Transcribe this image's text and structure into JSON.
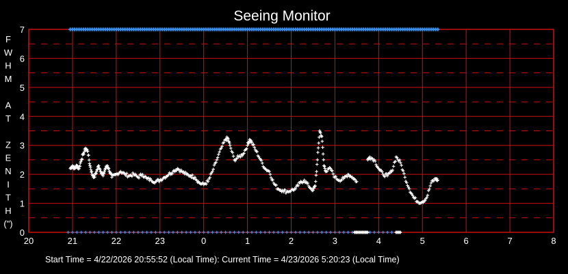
{
  "chart_data": {
    "type": "scatter",
    "title": "Seeing Monitor",
    "ylabel_letters": [
      "F",
      "W",
      "H",
      "M",
      "",
      "A",
      "T",
      "",
      "Z",
      "E",
      "N",
      "I",
      "T",
      "H",
      "(\")"
    ],
    "x_tick_labels": [
      "20",
      "21",
      "22",
      "23",
      "0",
      "1",
      "2",
      "3",
      "4",
      "5",
      "6",
      "7",
      "8"
    ],
    "y_tick_labels": [
      "0",
      "1",
      "2",
      "3",
      "4",
      "5",
      "6",
      "7"
    ],
    "x_range_hours": [
      20,
      32
    ],
    "ylim": [
      0,
      7
    ],
    "grid": true,
    "footer": "Start Time = 4/22/2026  20:55:52 (Local Time):  Current Time = 4/23/2026  5:20:23 (Local Time)",
    "colors": {
      "background": "#000000",
      "grid": "#cc1111",
      "data": "#ffffff",
      "marker": "#3a8ee8"
    },
    "top_markers_range_hours": [
      20.95,
      29.35
    ],
    "bottom_markers_range_hours": [
      20.9,
      28.5
    ],
    "bottom_highlight_ranges_hours": [
      [
        27.45,
        27.75
      ],
      [
        28.4,
        28.5
      ]
    ],
    "fwhm_series": [
      [
        20.95,
        2.2
      ],
      [
        21.0,
        2.3
      ],
      [
        21.05,
        2.2
      ],
      [
        21.1,
        2.3
      ],
      [
        21.15,
        2.2
      ],
      [
        21.2,
        2.5
      ],
      [
        21.25,
        2.7
      ],
      [
        21.3,
        2.9
      ],
      [
        21.35,
        2.8
      ],
      [
        21.4,
        2.3
      ],
      [
        21.45,
        2.0
      ],
      [
        21.5,
        1.9
      ],
      [
        21.55,
        2.1
      ],
      [
        21.6,
        2.3
      ],
      [
        21.65,
        2.1
      ],
      [
        21.7,
        1.95
      ],
      [
        21.75,
        2.2
      ],
      [
        21.8,
        2.3
      ],
      [
        21.85,
        2.1
      ],
      [
        21.9,
        1.9
      ],
      [
        22.0,
        2.0
      ],
      [
        22.1,
        2.1
      ],
      [
        22.2,
        2.0
      ],
      [
        22.3,
        1.95
      ],
      [
        22.4,
        2.0
      ],
      [
        22.5,
        1.9
      ],
      [
        22.6,
        2.0
      ],
      [
        22.7,
        1.85
      ],
      [
        22.8,
        1.8
      ],
      [
        22.9,
        1.75
      ],
      [
        23.0,
        1.8
      ],
      [
        23.1,
        1.9
      ],
      [
        23.2,
        2.0
      ],
      [
        23.3,
        2.1
      ],
      [
        23.4,
        2.2
      ],
      [
        23.5,
        2.1
      ],
      [
        23.6,
        2.0
      ],
      [
        23.7,
        1.95
      ],
      [
        23.8,
        1.9
      ],
      [
        23.9,
        1.7
      ],
      [
        24.0,
        1.65
      ],
      [
        24.1,
        1.75
      ],
      [
        24.2,
        2.1
      ],
      [
        24.3,
        2.5
      ],
      [
        24.4,
        2.9
      ],
      [
        24.5,
        3.2
      ],
      [
        24.55,
        3.25
      ],
      [
        24.6,
        3.0
      ],
      [
        24.7,
        2.5
      ],
      [
        24.8,
        2.6
      ],
      [
        24.9,
        2.7
      ],
      [
        25.0,
        3.0
      ],
      [
        25.05,
        3.2
      ],
      [
        25.1,
        3.1
      ],
      [
        25.2,
        2.8
      ],
      [
        25.3,
        2.5
      ],
      [
        25.4,
        2.2
      ],
      [
        25.5,
        2.1
      ],
      [
        25.6,
        1.7
      ],
      [
        25.7,
        1.5
      ],
      [
        25.8,
        1.45
      ],
      [
        25.9,
        1.4
      ],
      [
        26.0,
        1.45
      ],
      [
        26.1,
        1.5
      ],
      [
        26.2,
        1.7
      ],
      [
        26.3,
        1.8
      ],
      [
        26.4,
        1.6
      ],
      [
        26.5,
        1.45
      ],
      [
        26.55,
        1.6
      ],
      [
        26.6,
        2.5
      ],
      [
        26.65,
        3.5
      ],
      [
        26.7,
        3.3
      ],
      [
        26.75,
        2.3
      ],
      [
        26.8,
        2.1
      ],
      [
        26.9,
        2.2
      ],
      [
        27.0,
        1.9
      ],
      [
        27.1,
        1.8
      ],
      [
        27.2,
        1.85
      ],
      [
        27.3,
        2.0
      ],
      [
        27.4,
        1.9
      ],
      [
        27.5,
        1.75
      ],
      [
        27.75,
        2.5
      ],
      [
        27.8,
        2.6
      ],
      [
        27.9,
        2.5
      ],
      [
        28.0,
        2.2
      ],
      [
        28.1,
        2.0
      ],
      [
        28.2,
        1.95
      ],
      [
        28.3,
        2.1
      ],
      [
        28.4,
        2.6
      ],
      [
        28.5,
        2.4
      ],
      [
        28.6,
        1.9
      ],
      [
        28.7,
        1.5
      ],
      [
        28.8,
        1.2
      ],
      [
        28.9,
        1.05
      ],
      [
        29.0,
        1.05
      ],
      [
        29.1,
        1.2
      ],
      [
        29.2,
        1.7
      ],
      [
        29.3,
        1.85
      ],
      [
        29.35,
        1.8
      ]
    ]
  }
}
